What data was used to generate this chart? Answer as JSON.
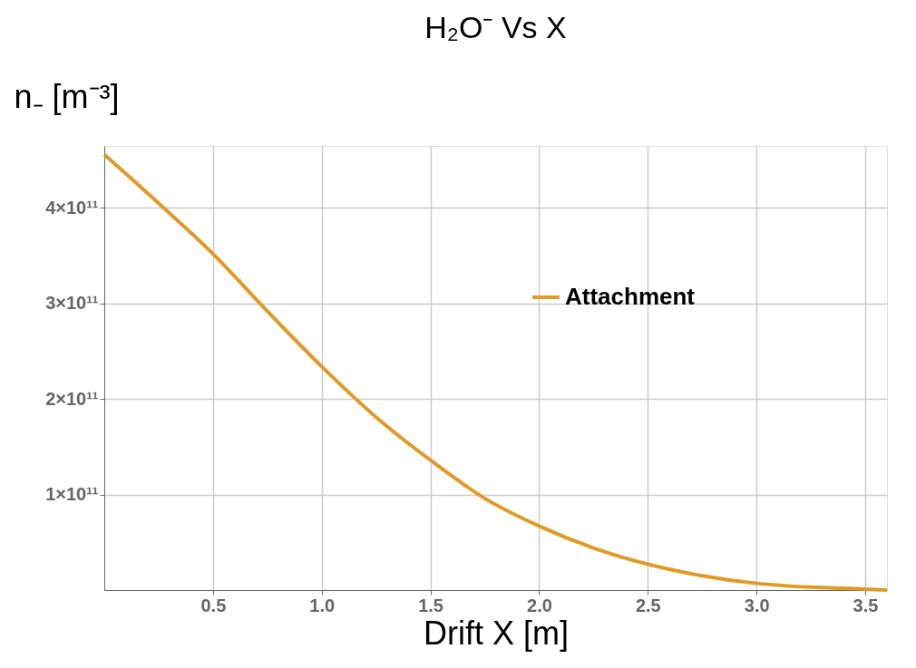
{
  "chart_data": {
    "type": "line",
    "title": "H₂O⁻ Vs  X",
    "xlabel": "Drift X [m]",
    "ylabel": "n₋ [m⁻³]",
    "x": [
      0,
      0.25,
      0.5,
      0.75,
      1.0,
      1.25,
      1.5,
      1.75,
      2.0,
      2.25,
      2.5,
      2.75,
      3.0,
      3.25,
      3.5,
      3.6
    ],
    "series": [
      {
        "name": "Attachment",
        "color": "#e09a25",
        "values": [
          456000000000.0,
          405000000000.0,
          352000000000.0,
          292000000000.0,
          234000000000.0,
          181000000000.0,
          136000000000.0,
          96000000000.0,
          67000000000.0,
          44000000000.0,
          27000000000.0,
          15000000000.0,
          7000000000.0,
          3000000000.0,
          1000000000.0,
          0
        ]
      }
    ],
    "xlim": [
      0,
      3.6
    ],
    "xticks": [
      0.5,
      {
        "value": 1,
        "label": "1.0"
      },
      1.5,
      {
        "value": 2,
        "label": "2.0"
      },
      2.5,
      {
        "value": 3,
        "label": "3.0"
      },
      3.5
    ],
    "ylim": [
      0,
      465000000000.0
    ],
    "yticks": [
      {
        "value": 100000000000.0,
        "label": "1×10¹¹"
      },
      {
        "value": 200000000000.0,
        "label": "2×10¹¹"
      },
      {
        "value": 300000000000.0,
        "label": "3×10¹¹"
      },
      {
        "value": 400000000000.0,
        "label": "4×10¹¹"
      }
    ],
    "grid": true,
    "legend": "top right",
    "marker": "none",
    "line_style": "solid"
  }
}
